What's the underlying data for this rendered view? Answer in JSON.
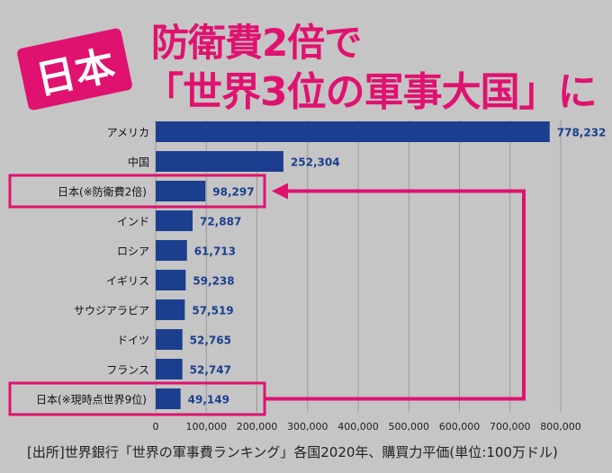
{
  "header": {
    "badge": "日本",
    "title_line1": "防衛費2倍で",
    "title_line2": "「世界3位の軍事大国」に"
  },
  "source": "[出所]世界銀行「世界の軍事費ランキング」各国2020年、購買力平価(単位:100万ドル)",
  "colors": {
    "bar": "#1b3f8e",
    "accent": "#e0126f",
    "background": "#c5c5c5"
  },
  "chart_data": {
    "type": "bar",
    "orientation": "horizontal",
    "categories": [
      "アメリカ",
      "中国",
      "日本(※防衛費2倍)",
      "インド",
      "ロシア",
      "イギリス",
      "サウジアラビア",
      "ドイツ",
      "フランス",
      "日本(※現時点世界9位)"
    ],
    "values": [
      778232,
      252304,
      98297,
      72887,
      61713,
      59238,
      57519,
      52765,
      52747,
      49149
    ],
    "value_labels": [
      "778,232",
      "252,304",
      "98,297",
      "72,887",
      "61,713",
      "59,238",
      "57,519",
      "52,765",
      "52,747",
      "49,149"
    ],
    "highlighted": [
      "日本(※防衛費2倍)",
      "日本(※現時点世界9位)"
    ],
    "xlim": [
      0,
      800000
    ],
    "xticks": [
      "0",
      "100,000",
      "200,000",
      "300,000",
      "400,000",
      "500,000",
      "600,000",
      "700,000",
      "800,000"
    ],
    "grid": true
  }
}
